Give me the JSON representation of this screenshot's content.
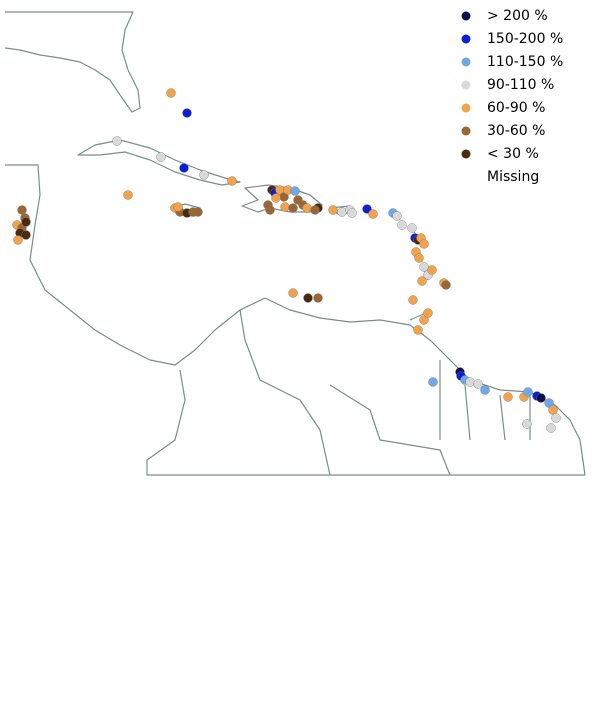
{
  "legend": {
    "items": [
      {
        "label": "> 200 %",
        "color": "#0b0b4f"
      },
      {
        "label": "150-200 %",
        "color": "#0a1fd6"
      },
      {
        "label": "110-150 %",
        "color": "#6fa8e8"
      },
      {
        "label": "90-110 %",
        "color": "#d9d9d9"
      },
      {
        "label": "60-90 %",
        "color": "#f2a24a"
      },
      {
        "label": "30-60 %",
        "color": "#9a6633"
      },
      {
        "label": "< 30  %",
        "color": "#4a2a10"
      },
      {
        "label": "Missing"
      }
    ]
  }
}
